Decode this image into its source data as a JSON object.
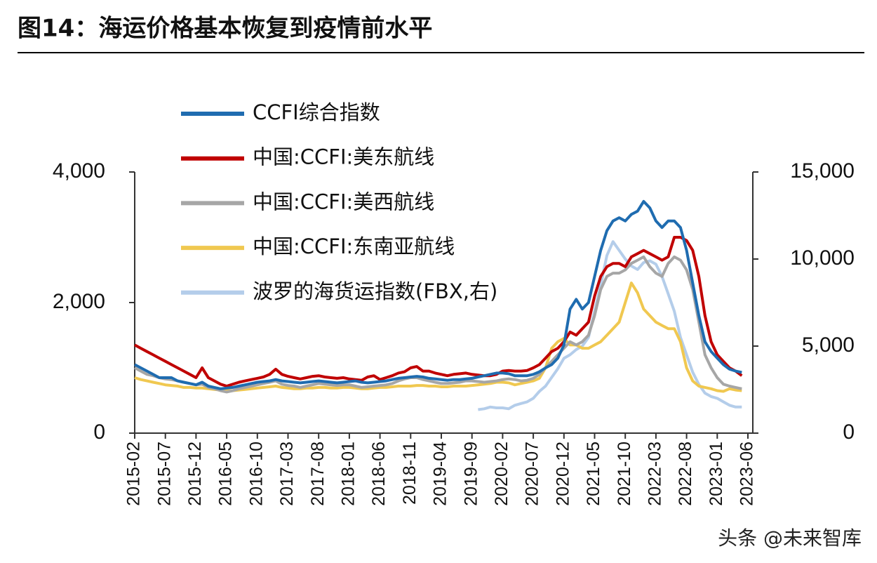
{
  "chart_data": {
    "type": "line",
    "title": "图14：海运价格基本恢复到疫情前水平",
    "annotations": [
      "头条 @未来智库"
    ],
    "x": [
      "2015-02",
      "2015-03",
      "2015-04",
      "2015-05",
      "2015-06",
      "2015-07",
      "2015-08",
      "2015-09",
      "2015-10",
      "2015-11",
      "2015-12",
      "2016-01",
      "2016-02",
      "2016-03",
      "2016-04",
      "2016-05",
      "2016-06",
      "2016-07",
      "2016-08",
      "2016-09",
      "2016-10",
      "2016-11",
      "2016-12",
      "2017-01",
      "2017-02",
      "2017-03",
      "2017-04",
      "2017-05",
      "2017-06",
      "2017-07",
      "2017-08",
      "2017-09",
      "2017-10",
      "2017-11",
      "2017-12",
      "2018-01",
      "2018-02",
      "2018-03",
      "2018-04",
      "2018-05",
      "2018-06",
      "2018-07",
      "2018-08",
      "2018-09",
      "2018-10",
      "2018-11",
      "2018-12",
      "2019-01",
      "2019-02",
      "2019-03",
      "2019-04",
      "2019-05",
      "2019-06",
      "2019-07",
      "2019-08",
      "2019-09",
      "2019-10",
      "2019-11",
      "2019-12",
      "2020-01",
      "2020-02",
      "2020-03",
      "2020-04",
      "2020-05",
      "2020-06",
      "2020-07",
      "2020-08",
      "2020-09",
      "2020-10",
      "2020-11",
      "2020-12",
      "2021-01",
      "2021-02",
      "2021-03",
      "2021-04",
      "2021-05",
      "2021-06",
      "2021-07",
      "2021-08",
      "2021-09",
      "2021-10",
      "2021-11",
      "2021-12",
      "2022-01",
      "2022-02",
      "2022-03",
      "2022-04",
      "2022-05",
      "2022-06",
      "2022-07",
      "2022-08",
      "2022-09",
      "2022-10",
      "2022-11",
      "2022-12",
      "2023-01",
      "2023-02",
      "2023-03",
      "2023-04",
      "2023-05"
    ],
    "xlim": [
      "2015-02",
      "2023-06"
    ],
    "xticks": [
      "2015-02",
      "2015-07",
      "2015-12",
      "2016-05",
      "2016-10",
      "2017-03",
      "2017-08",
      "2018-01",
      "2018-06",
      "2018-11",
      "2019-04",
      "2019-09",
      "2020-02",
      "2020-07",
      "2020-12",
      "2021-05",
      "2021-10",
      "2022-03",
      "2022-08",
      "2023-01",
      "2023-06"
    ],
    "ylim": [
      0,
      4000
    ],
    "yticks": [
      0,
      {
        "value": 2000,
        "label": "2,000"
      },
      {
        "value": 4000,
        "label": "4,000"
      }
    ],
    "y2lim": [
      0,
      15000
    ],
    "y2ticks": [
      0,
      {
        "value": 5000,
        "label": "5,000"
      },
      {
        "value": 10000,
        "label": "10,000"
      },
      {
        "value": 15000,
        "label": "15,000"
      }
    ],
    "series": [
      {
        "name": "CCFI综合指数",
        "color": "#1f6cb0",
        "values": [
          1050,
          1000,
          950,
          900,
          850,
          850,
          850,
          800,
          780,
          760,
          740,
          780,
          720,
          700,
          680,
          690,
          700,
          720,
          740,
          760,
          780,
          790,
          800,
          820,
          800,
          790,
          780,
          770,
          780,
          790,
          800,
          790,
          780,
          770,
          780,
          790,
          800,
          780,
          770,
          780,
          790,
          800,
          820,
          840,
          850,
          860,
          870,
          860,
          840,
          830,
          820,
          810,
          820,
          820,
          830,
          840,
          860,
          880,
          900,
          920,
          920,
          910,
          880,
          880,
          880,
          900,
          940,
          1000,
          1050,
          1150,
          1350,
          1900,
          2050,
          1900,
          2000,
          2400,
          2800,
          3100,
          3250,
          3300,
          3250,
          3350,
          3400,
          3550,
          3450,
          3250,
          3150,
          3250,
          3250,
          3150,
          2800,
          2300,
          1800,
          1400,
          1250,
          1150,
          1050,
          980,
          950,
          930
        ]
      },
      {
        "name": "中国:CCFI:美东航线",
        "color": "#c00000",
        "values": [
          1350,
          1300,
          1250,
          1200,
          1150,
          1100,
          1050,
          1000,
          950,
          900,
          850,
          1000,
          850,
          800,
          750,
          720,
          750,
          780,
          800,
          820,
          840,
          860,
          900,
          980,
          900,
          870,
          850,
          830,
          850,
          870,
          880,
          860,
          850,
          840,
          850,
          830,
          820,
          810,
          860,
          880,
          820,
          850,
          880,
          920,
          940,
          1000,
          1020,
          950,
          950,
          920,
          900,
          880,
          900,
          910,
          920,
          900,
          890,
          880,
          880,
          900,
          950,
          960,
          950,
          950,
          960,
          1000,
          1050,
          1150,
          1250,
          1300,
          1400,
          1550,
          1500,
          1600,
          1700,
          2100,
          2400,
          2550,
          2600,
          2600,
          2550,
          2700,
          2750,
          2800,
          2750,
          2700,
          2650,
          2700,
          3000,
          3000,
          2950,
          2800,
          2400,
          1800,
          1400,
          1200,
          1100,
          1000,
          950,
          880
        ]
      },
      {
        "name": "中国:CCFI:美西航线",
        "color": "#a6a6a6",
        "values": [
          1000,
          950,
          900,
          880,
          850,
          830,
          820,
          800,
          780,
          760,
          740,
          750,
          700,
          680,
          650,
          630,
          650,
          680,
          700,
          720,
          740,
          760,
          780,
          800,
          750,
          730,
          720,
          700,
          720,
          740,
          760,
          750,
          740,
          730,
          740,
          740,
          720,
          700,
          710,
          720,
          730,
          740,
          760,
          800,
          830,
          850,
          850,
          820,
          800,
          780,
          760,
          760,
          770,
          780,
          800,
          800,
          790,
          780,
          790,
          800,
          820,
          830,
          820,
          800,
          810,
          840,
          900,
          1000,
          1100,
          1200,
          1300,
          1400,
          1350,
          1400,
          1500,
          1800,
          2200,
          2400,
          2450,
          2450,
          2500,
          2600,
          2650,
          2700,
          2550,
          2450,
          2400,
          2600,
          2700,
          2650,
          2500,
          2200,
          1700,
          1200,
          1000,
          850,
          750,
          720,
          700,
          680
        ]
      },
      {
        "name": "中国:CCFI:东南亚航线",
        "color": "#f0c850",
        "values": [
          850,
          820,
          800,
          780,
          760,
          740,
          730,
          720,
          700,
          700,
          690,
          690,
          680,
          670,
          660,
          650,
          650,
          660,
          670,
          680,
          690,
          700,
          710,
          720,
          700,
          690,
          680,
          680,
          690,
          690,
          700,
          700,
          690,
          690,
          700,
          700,
          690,
          680,
          680,
          690,
          700,
          700,
          710,
          720,
          720,
          720,
          730,
          730,
          720,
          720,
          710,
          710,
          720,
          720,
          720,
          730,
          740,
          750,
          760,
          780,
          780,
          770,
          740,
          760,
          780,
          800,
          840,
          1000,
          1300,
          1400,
          1450,
          1350,
          1350,
          1300,
          1300,
          1350,
          1400,
          1500,
          1600,
          1700,
          2000,
          2300,
          2150,
          1900,
          1800,
          1700,
          1650,
          1600,
          1600,
          1400,
          1000,
          800,
          720,
          700,
          680,
          650,
          640,
          680,
          660,
          650
        ]
      },
      {
        "name": "波罗的海货运指数(FBX,右)",
        "color": "#b4cdea",
        "axis": "y2",
        "values": [
          null,
          null,
          null,
          null,
          null,
          null,
          null,
          null,
          null,
          null,
          null,
          null,
          null,
          null,
          null,
          null,
          null,
          null,
          null,
          null,
          null,
          null,
          null,
          null,
          null,
          null,
          null,
          null,
          null,
          null,
          null,
          null,
          null,
          null,
          null,
          null,
          null,
          null,
          null,
          null,
          null,
          null,
          null,
          null,
          null,
          null,
          null,
          null,
          null,
          null,
          null,
          null,
          null,
          null,
          null,
          null,
          1350,
          1400,
          1500,
          1450,
          1450,
          1400,
          1600,
          1700,
          1800,
          2000,
          2400,
          2700,
          3200,
          3700,
          4300,
          4500,
          4800,
          5000,
          5500,
          7000,
          8500,
          10200,
          11000,
          10500,
          10000,
          9600,
          9400,
          9800,
          9900,
          9700,
          9000,
          8000,
          7000,
          5500,
          4500,
          3500,
          2800,
          2300,
          2100,
          2000,
          1800,
          1600,
          1500,
          1500
        ]
      }
    ]
  }
}
